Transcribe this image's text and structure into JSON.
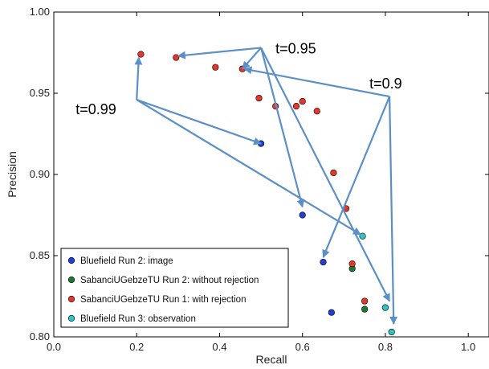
{
  "chart_data": {
    "type": "scatter",
    "title": "",
    "xlabel": "Recall",
    "ylabel": "Precision",
    "xlim": [
      0.0,
      1.05
    ],
    "ylim": [
      0.8,
      1.0
    ],
    "x_ticks": [
      "0.0",
      "0.2",
      "0.4",
      "0.6",
      "0.8",
      "1.0"
    ],
    "y_ticks": [
      "0.80",
      "0.85",
      "0.90",
      "0.95",
      "1.00"
    ],
    "grid": false,
    "legend_position": "bottom-left",
    "series": [
      {
        "name": "Bluefield Run 2: image",
        "color": "#1f3fd6",
        "points": [
          [
            0.5,
            0.919
          ],
          [
            0.6,
            0.875
          ],
          [
            0.65,
            0.846
          ],
          [
            0.67,
            0.815
          ]
        ]
      },
      {
        "name": "SabanciUGebzeTU Run 2: without rejection",
        "color": "#1a7a30",
        "points": [
          [
            0.72,
            0.842
          ],
          [
            0.75,
            0.817
          ]
        ]
      },
      {
        "name": "SabanciUGebzeTU Run 1: with rejection",
        "color": "#e8352a",
        "points": [
          [
            0.21,
            0.974
          ],
          [
            0.295,
            0.972
          ],
          [
            0.39,
            0.966
          ],
          [
            0.455,
            0.965
          ],
          [
            0.495,
            0.947
          ],
          [
            0.535,
            0.942
          ],
          [
            0.585,
            0.942
          ],
          [
            0.6,
            0.945
          ],
          [
            0.635,
            0.939
          ],
          [
            0.675,
            0.901
          ],
          [
            0.705,
            0.879
          ],
          [
            0.72,
            0.845
          ],
          [
            0.75,
            0.822
          ]
        ]
      },
      {
        "name": "Bluefield Run 3: observation",
        "color": "#2ec4c4",
        "points": [
          [
            0.745,
            0.862
          ],
          [
            0.8,
            0.818
          ],
          [
            0.815,
            0.803
          ]
        ]
      }
    ],
    "annotations": [
      {
        "text": "t=0.95",
        "anchor": [
          0.5,
          0.978
        ],
        "arrows_to": [
          [
            0.3,
            0.973
          ],
          [
            0.455,
            0.965
          ],
          [
            0.6,
            0.88
          ],
          [
            0.81,
            0.822
          ]
        ]
      },
      {
        "text": "t=0.99",
        "anchor": [
          0.2,
          0.946
        ],
        "arrows_to": [
          [
            0.205,
            0.972
          ],
          [
            0.5,
            0.919
          ],
          [
            0.74,
            0.863
          ]
        ]
      },
      {
        "text": "t=0.9",
        "anchor": [
          0.81,
          0.948
        ],
        "arrows_to": [
          [
            0.46,
            0.965
          ],
          [
            0.65,
            0.849
          ],
          [
            0.82,
            0.808
          ]
        ]
      }
    ]
  }
}
